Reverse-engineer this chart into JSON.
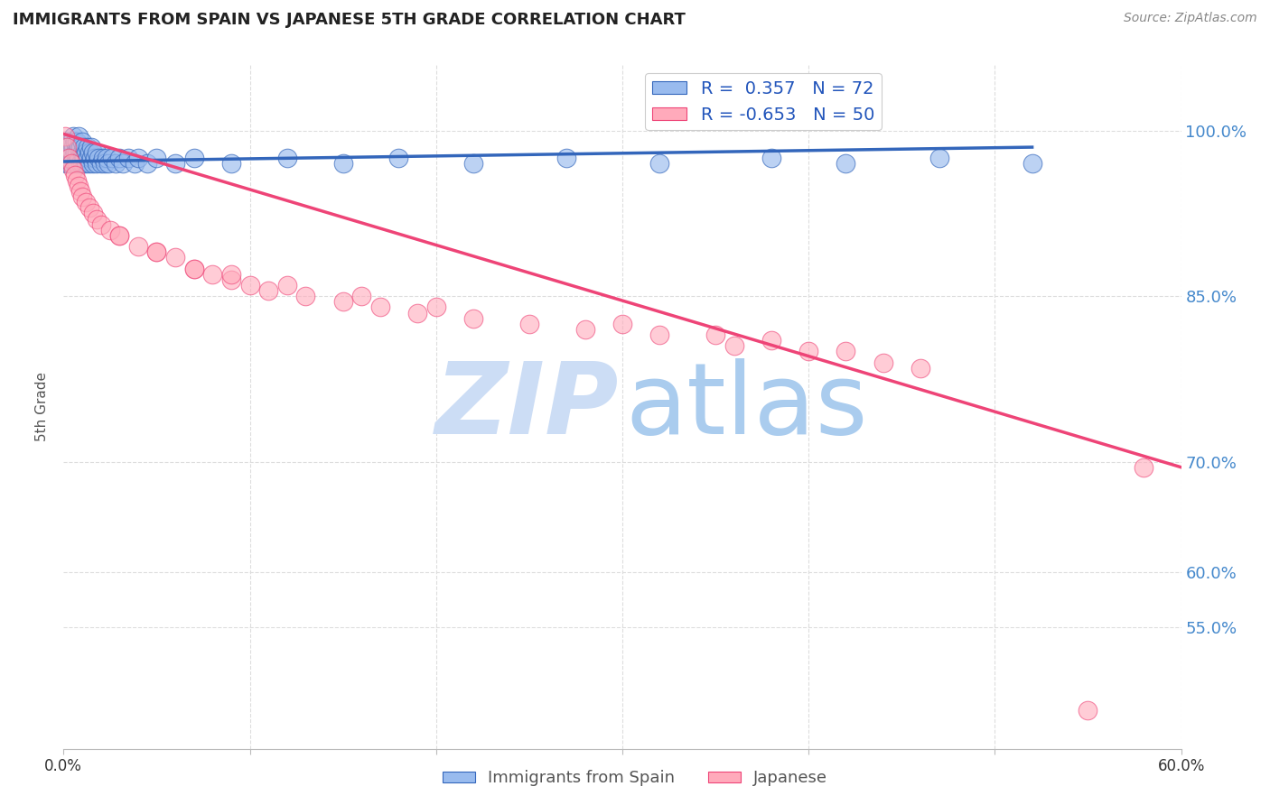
{
  "title": "IMMIGRANTS FROM SPAIN VS JAPANESE 5TH GRADE CORRELATION CHART",
  "source": "Source: ZipAtlas.com",
  "ylabel": "5th Grade",
  "legend_labels": [
    "Immigrants from Spain",
    "Japanese"
  ],
  "blue_R": 0.357,
  "blue_N": 72,
  "pink_R": -0.653,
  "pink_N": 50,
  "blue_color": "#99bbee",
  "pink_color": "#ffaabb",
  "blue_line_color": "#3366bb",
  "pink_line_color": "#ee4477",
  "watermark_zip_color": "#ccddf5",
  "watermark_atlas_color": "#aaccee",
  "background_color": "#ffffff",
  "grid_color": "#dddddd",
  "xlim": [
    0.0,
    0.6
  ],
  "ylim": [
    0.44,
    1.06
  ],
  "blue_scatter_x": [
    0.0005,
    0.001,
    0.0015,
    0.002,
    0.002,
    0.0025,
    0.003,
    0.003,
    0.003,
    0.004,
    0.004,
    0.004,
    0.005,
    0.005,
    0.005,
    0.006,
    0.006,
    0.006,
    0.007,
    0.007,
    0.007,
    0.008,
    0.008,
    0.008,
    0.009,
    0.009,
    0.01,
    0.01,
    0.01,
    0.011,
    0.011,
    0.012,
    0.012,
    0.013,
    0.013,
    0.014,
    0.014,
    0.015,
    0.015,
    0.016,
    0.016,
    0.017,
    0.018,
    0.018,
    0.019,
    0.02,
    0.021,
    0.022,
    0.023,
    0.024,
    0.026,
    0.028,
    0.03,
    0.032,
    0.035,
    0.038,
    0.04,
    0.045,
    0.05,
    0.06,
    0.07,
    0.09,
    0.12,
    0.15,
    0.18,
    0.22,
    0.27,
    0.32,
    0.38,
    0.42,
    0.47,
    0.52
  ],
  "blue_scatter_y": [
    0.975,
    0.98,
    0.97,
    0.985,
    0.99,
    0.975,
    0.97,
    0.985,
    0.99,
    0.97,
    0.98,
    0.99,
    0.975,
    0.985,
    0.995,
    0.97,
    0.98,
    0.99,
    0.97,
    0.98,
    0.99,
    0.975,
    0.985,
    0.995,
    0.97,
    0.985,
    0.97,
    0.98,
    0.99,
    0.975,
    0.985,
    0.97,
    0.98,
    0.975,
    0.985,
    0.97,
    0.98,
    0.975,
    0.985,
    0.97,
    0.98,
    0.975,
    0.97,
    0.98,
    0.975,
    0.97,
    0.975,
    0.97,
    0.975,
    0.97,
    0.975,
    0.97,
    0.975,
    0.97,
    0.975,
    0.97,
    0.975,
    0.97,
    0.975,
    0.97,
    0.975,
    0.97,
    0.975,
    0.97,
    0.975,
    0.97,
    0.975,
    0.97,
    0.975,
    0.97,
    0.975,
    0.97
  ],
  "pink_scatter_x": [
    0.001,
    0.002,
    0.003,
    0.004,
    0.005,
    0.006,
    0.007,
    0.008,
    0.009,
    0.01,
    0.012,
    0.014,
    0.016,
    0.018,
    0.02,
    0.025,
    0.03,
    0.04,
    0.05,
    0.06,
    0.07,
    0.08,
    0.09,
    0.1,
    0.11,
    0.13,
    0.15,
    0.17,
    0.19,
    0.22,
    0.25,
    0.28,
    0.32,
    0.36,
    0.4,
    0.44,
    0.46,
    0.38,
    0.42,
    0.35,
    0.3,
    0.2,
    0.16,
    0.12,
    0.09,
    0.07,
    0.05,
    0.03,
    0.55,
    0.58
  ],
  "pink_scatter_y": [
    0.995,
    0.985,
    0.975,
    0.97,
    0.965,
    0.96,
    0.955,
    0.95,
    0.945,
    0.94,
    0.935,
    0.93,
    0.925,
    0.92,
    0.915,
    0.91,
    0.905,
    0.895,
    0.89,
    0.885,
    0.875,
    0.87,
    0.865,
    0.86,
    0.855,
    0.85,
    0.845,
    0.84,
    0.835,
    0.83,
    0.825,
    0.82,
    0.815,
    0.805,
    0.8,
    0.79,
    0.785,
    0.81,
    0.8,
    0.815,
    0.825,
    0.84,
    0.85,
    0.86,
    0.87,
    0.875,
    0.89,
    0.905,
    0.475,
    0.695
  ],
  "blue_trend_x": [
    0.0,
    0.52
  ],
  "blue_trend_y": [
    0.972,
    0.985
  ],
  "pink_trend_x": [
    0.0,
    0.6
  ],
  "pink_trend_y": [
    0.997,
    0.695
  ]
}
